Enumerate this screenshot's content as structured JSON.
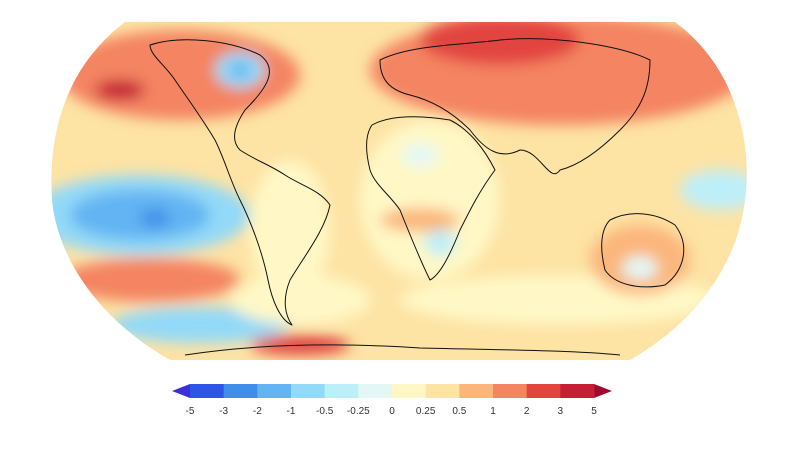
{
  "colorbar": {
    "ticks": [
      -5,
      -3,
      -2,
      -1,
      -0.5,
      -0.25,
      0,
      0.25,
      0.5,
      1,
      2,
      3,
      5
    ],
    "low_color": "#3a2fd8",
    "colors": [
      "#2f55e6",
      "#3f8ee9",
      "#62b4f2",
      "#93d9f8",
      "#bdeff9",
      "#e3f8f6",
      "#fff8c6",
      "#fde3a4",
      "#fbb67c",
      "#f48462",
      "#e2443f",
      "#c41f35"
    ],
    "high_color": "#a10a2e"
  }
}
